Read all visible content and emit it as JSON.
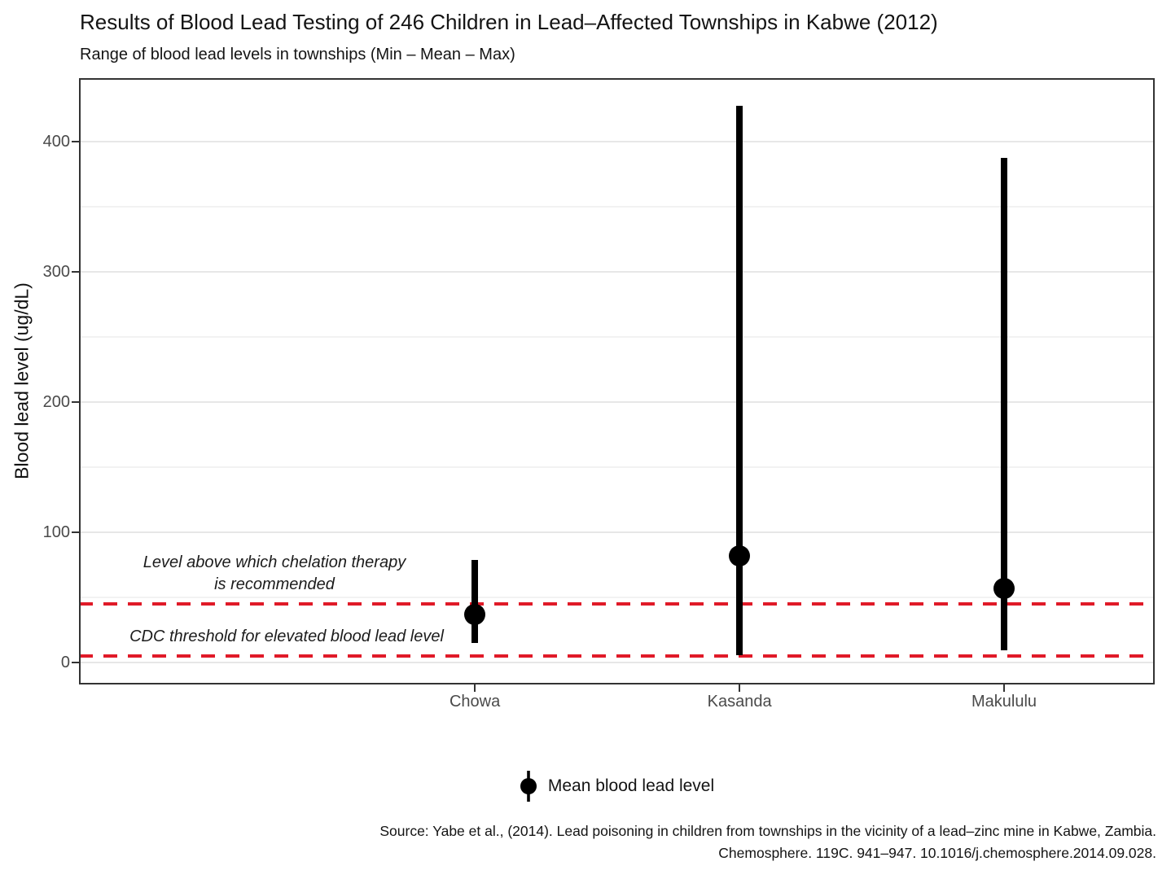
{
  "header": {
    "title": "Results of Blood Lead Testing of 246 Children in Lead–Affected Townships in Kabwe (2012)",
    "subtitle": "Range of blood lead levels in townships (Min – Mean – Max)"
  },
  "chart_data": {
    "type": "pointrange",
    "title": "Results of Blood Lead Testing of 246 Children in Lead–Affected Townships in Kabwe (2012)",
    "subtitle": "Range of blood lead levels in townships (Min – Mean – Max)",
    "categories": [
      "Chowa",
      "Kasanda",
      "Makululu"
    ],
    "series": [
      {
        "name": "Chowa",
        "min": 15,
        "mean": 37,
        "max": 79
      },
      {
        "name": "Kasanda",
        "min": 5.5,
        "mean": 82,
        "max": 428
      },
      {
        "name": "Makululu",
        "min": 9,
        "mean": 57,
        "max": 388
      }
    ],
    "xlabel": "",
    "ylabel": "Blood lead level (ug/dL)",
    "yticks": [
      0,
      100,
      200,
      300,
      400
    ],
    "yminor": [
      50,
      150,
      250,
      350
    ],
    "ylim": [
      -17,
      449
    ],
    "grid": true,
    "point_color": "#000000",
    "thresholds": [
      {
        "value": 45,
        "color": "#e01a28",
        "label_lines": [
          "Level above which chelation therapy",
          "is recommended"
        ]
      },
      {
        "value": 5,
        "color": "#e01a28",
        "label_lines": [
          "CDC threshold for elevated blood lead level"
        ]
      }
    ],
    "legend": {
      "label": "Mean blood lead level",
      "position": "bottom"
    }
  },
  "caption": {
    "line1": "Source: Yabe et al., (2014). Lead poisoning in children from townships in the vicinity of a lead–zinc mine in Kabwe, Zambia.",
    "line2": "Chemosphere. 119C. 941–947. 10.1016/j.chemosphere.2014.09.028."
  },
  "colors": {
    "threshold_red": "#e01a28",
    "grid_major": "#e7e7e7",
    "grid_minor": "#f2f2f2",
    "axis": "#333333",
    "tick_label": "#4a4a4a",
    "point": "#000000"
  }
}
